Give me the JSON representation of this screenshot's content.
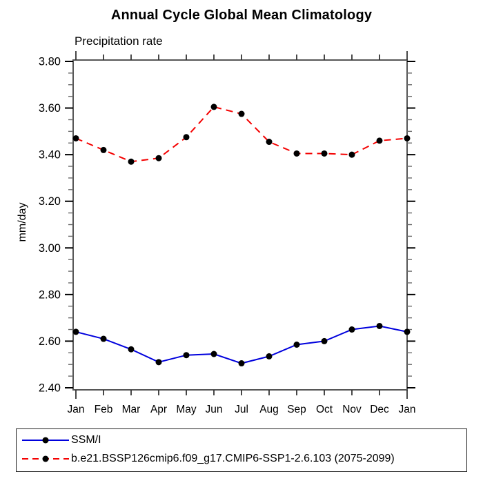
{
  "title": "Annual Cycle Global Mean Climatology",
  "subtitle": "Precipitation rate",
  "chart_data": {
    "type": "line",
    "categories": [
      "Jan",
      "Feb",
      "Mar",
      "Apr",
      "May",
      "Jun",
      "Jul",
      "Aug",
      "Sep",
      "Oct",
      "Nov",
      "Dec",
      "Jan"
    ],
    "xlabel": "",
    "ylabel": "mm/day",
    "ylim": [
      2.4,
      3.8
    ],
    "ytick_step": 0.2,
    "yminor_step": 0.05,
    "ytick_labels": [
      "2.40",
      "2.60",
      "2.80",
      "3.00",
      "3.20",
      "3.40",
      "3.60",
      "3.80"
    ],
    "grid": false,
    "legend_position": "bottom",
    "marker": "filled-circle",
    "marker_color": "#000000",
    "series": [
      {
        "name": "SSM/I",
        "line_style": "solid",
        "color": "#0000dd",
        "values": [
          2.64,
          2.61,
          2.565,
          2.51,
          2.54,
          2.545,
          2.505,
          2.535,
          2.585,
          2.6,
          2.65,
          2.665,
          2.64
        ]
      },
      {
        "name": "b.e21.BSSP126cmip6.f09_g17.CMIP6-SSP1-2.6.103 (2075-2099)",
        "line_style": "dashed",
        "color": "#f40000",
        "values": [
          3.47,
          3.42,
          3.37,
          3.385,
          3.475,
          3.605,
          3.575,
          3.455,
          3.405,
          3.405,
          3.4,
          3.46,
          3.47
        ]
      }
    ]
  }
}
